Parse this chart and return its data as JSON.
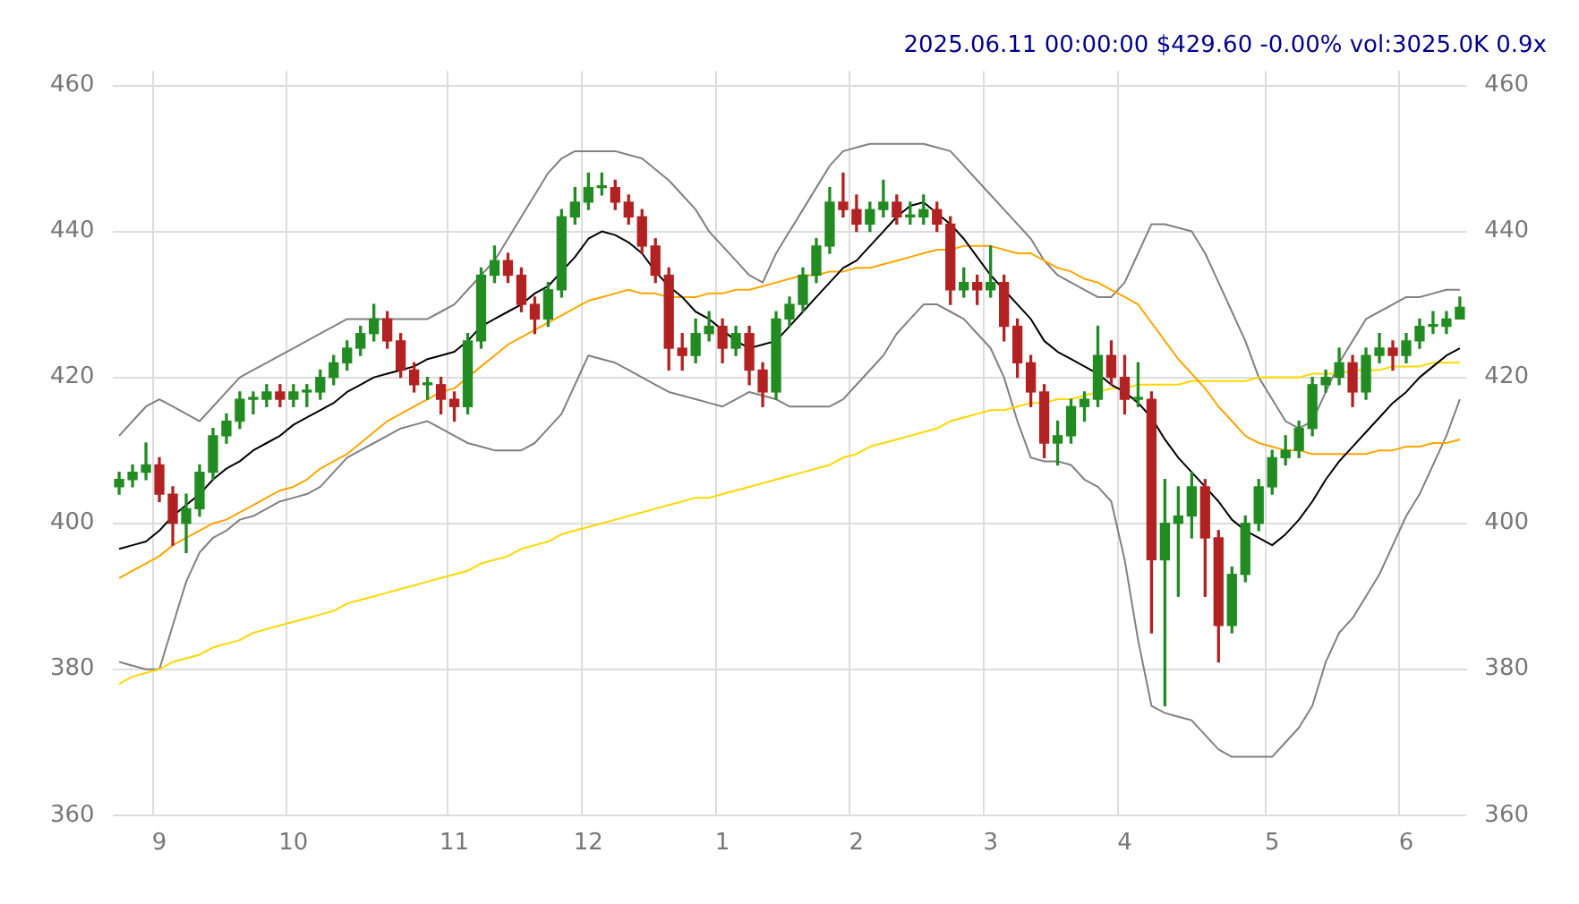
{
  "chart_data": {
    "type": "candlestick",
    "title": "2025.06.11 00:00:00 $429.60 -0.00% vol:3025.0K 0.9x",
    "categories": [
      null,
      null,
      null,
      "9",
      null,
      null,
      null,
      null,
      null,
      null,
      null,
      null,
      null,
      "10",
      null,
      null,
      null,
      null,
      null,
      null,
      null,
      null,
      null,
      null,
      null,
      "11",
      null,
      null,
      null,
      null,
      null,
      null,
      null,
      null,
      null,
      "12",
      null,
      null,
      null,
      null,
      null,
      null,
      null,
      null,
      null,
      "1",
      null,
      null,
      null,
      null,
      null,
      null,
      null,
      null,
      null,
      "2",
      null,
      null,
      null,
      null,
      null,
      null,
      null,
      null,
      null,
      "3",
      null,
      null,
      null,
      null,
      null,
      null,
      null,
      null,
      null,
      "4",
      null,
      null,
      null,
      null,
      null,
      null,
      null,
      null,
      null,
      null,
      "5",
      null,
      null,
      null,
      null,
      null,
      null,
      null,
      null,
      null,
      "6",
      null,
      null,
      null,
      null
    ],
    "ohlc": [
      [
        405,
        407,
        404,
        406
      ],
      [
        406,
        408,
        405,
        407
      ],
      [
        407,
        411,
        406,
        408
      ],
      [
        408,
        409,
        403,
        404
      ],
      [
        404,
        405,
        397,
        400
      ],
      [
        400,
        404,
        396,
        402
      ],
      [
        402,
        408,
        401,
        407
      ],
      [
        407,
        413,
        406,
        412
      ],
      [
        412,
        415,
        411,
        414
      ],
      [
        414,
        418,
        413,
        417
      ],
      [
        417,
        418,
        415,
        417
      ],
      [
        417,
        419,
        416,
        418
      ],
      [
        418,
        419,
        416,
        417
      ],
      [
        417,
        419,
        416,
        418
      ],
      [
        418,
        419,
        416,
        418
      ],
      [
        418,
        421,
        417,
        420
      ],
      [
        420,
        423,
        419,
        422
      ],
      [
        422,
        425,
        421,
        424
      ],
      [
        424,
        427,
        423,
        426
      ],
      [
        426,
        430,
        425,
        428
      ],
      [
        428,
        429,
        424,
        425
      ],
      [
        425,
        426,
        420,
        421
      ],
      [
        421,
        422,
        418,
        419
      ],
      [
        419,
        420,
        417,
        419
      ],
      [
        419,
        420,
        415,
        417
      ],
      [
        417,
        418,
        414,
        416
      ],
      [
        416,
        426,
        415,
        425
      ],
      [
        425,
        435,
        424,
        434
      ],
      [
        434,
        438,
        433,
        436
      ],
      [
        436,
        437,
        433,
        434
      ],
      [
        434,
        435,
        429,
        430
      ],
      [
        430,
        431,
        426,
        428
      ],
      [
        428,
        433,
        427,
        432
      ],
      [
        432,
        443,
        431,
        442
      ],
      [
        442,
        446,
        441,
        444
      ],
      [
        444,
        448,
        443,
        446
      ],
      [
        446,
        448,
        445,
        446
      ],
      [
        446,
        447,
        443,
        444
      ],
      [
        444,
        445,
        441,
        442
      ],
      [
        442,
        443,
        437,
        438
      ],
      [
        438,
        439,
        433,
        434
      ],
      [
        434,
        435,
        421,
        424
      ],
      [
        424,
        426,
        421,
        423
      ],
      [
        423,
        428,
        422,
        426
      ],
      [
        426,
        429,
        425,
        427
      ],
      [
        427,
        428,
        422,
        424
      ],
      [
        424,
        427,
        423,
        426
      ],
      [
        426,
        427,
        419,
        421
      ],
      [
        421,
        422,
        416,
        418
      ],
      [
        418,
        429,
        417,
        428
      ],
      [
        428,
        431,
        427,
        430
      ],
      [
        430,
        435,
        429,
        434
      ],
      [
        434,
        439,
        433,
        438
      ],
      [
        438,
        446,
        437,
        444
      ],
      [
        444,
        448,
        442,
        443
      ],
      [
        443,
        445,
        440,
        441
      ],
      [
        441,
        444,
        440,
        443
      ],
      [
        443,
        447,
        442,
        444
      ],
      [
        444,
        445,
        441,
        442
      ],
      [
        442,
        444,
        441,
        442
      ],
      [
        442,
        445,
        441,
        443
      ],
      [
        443,
        444,
        440,
        441
      ],
      [
        441,
        442,
        430,
        432
      ],
      [
        432,
        435,
        431,
        433
      ],
      [
        433,
        434,
        430,
        432
      ],
      [
        432,
        438,
        431,
        433
      ],
      [
        433,
        434,
        425,
        427
      ],
      [
        427,
        428,
        420,
        422
      ],
      [
        422,
        423,
        416,
        418
      ],
      [
        418,
        419,
        409,
        411
      ],
      [
        411,
        414,
        408,
        412
      ],
      [
        412,
        417,
        411,
        416
      ],
      [
        416,
        418,
        414,
        417
      ],
      [
        417,
        427,
        416,
        423
      ],
      [
        423,
        425,
        419,
        420
      ],
      [
        420,
        423,
        415,
        417
      ],
      [
        417,
        422,
        416,
        417
      ],
      [
        417,
        418,
        385,
        395
      ],
      [
        395,
        406,
        375,
        400
      ],
      [
        400,
        405,
        390,
        401
      ],
      [
        401,
        407,
        398,
        405
      ],
      [
        405,
        406,
        390,
        398
      ],
      [
        398,
        399,
        381,
        386
      ],
      [
        386,
        394,
        385,
        393
      ],
      [
        393,
        401,
        392,
        400
      ],
      [
        400,
        406,
        399,
        405
      ],
      [
        405,
        410,
        404,
        409
      ],
      [
        409,
        412,
        408,
        410
      ],
      [
        410,
        414,
        409,
        413
      ],
      [
        413,
        420,
        412,
        419
      ],
      [
        419,
        421,
        418,
        420
      ],
      [
        420,
        424,
        419,
        422
      ],
      [
        422,
        423,
        416,
        418
      ],
      [
        418,
        424,
        417,
        423
      ],
      [
        423,
        426,
        422,
        424
      ],
      [
        424,
        425,
        421,
        423
      ],
      [
        423,
        426,
        422,
        425
      ],
      [
        425,
        428,
        424,
        427
      ],
      [
        427,
        429,
        426,
        427
      ],
      [
        427,
        429,
        426,
        428
      ],
      [
        428,
        431,
        428,
        429.6
      ]
    ],
    "series": [
      {
        "type": "line",
        "color": "#000000",
        "values": [
          396.5,
          397,
          397.5,
          399,
          401,
          402.5,
          404,
          406,
          407.5,
          408.5,
          410,
          411,
          412,
          413.5,
          414.5,
          415.5,
          416.5,
          418,
          419,
          420,
          420.5,
          421,
          421.5,
          422.5,
          423,
          423.5,
          425,
          427,
          428,
          429,
          430,
          431.5,
          432.5,
          434.5,
          436.5,
          439,
          440,
          439.5,
          438.5,
          437,
          434.5,
          432.5,
          431,
          429,
          428,
          426.5,
          425,
          424,
          424.5,
          425,
          427,
          429,
          431,
          433,
          435,
          436,
          438,
          440,
          442,
          443.5,
          444,
          442.5,
          441,
          439,
          436.5,
          434,
          432,
          430,
          428,
          425,
          423.5,
          422.5,
          421.5,
          420.5,
          419,
          418,
          416.5,
          414.5,
          411.5,
          409,
          407,
          405,
          403,
          400.5,
          399,
          398,
          397,
          398.5,
          400.5,
          403,
          406,
          408.5,
          410.5,
          412.5,
          414.5,
          416.5,
          418,
          420,
          421.5,
          423,
          424
        ]
      },
      {
        "type": "line",
        "color": "#ffa500",
        "values": [
          392.5,
          393.5,
          394.5,
          395.5,
          397,
          398,
          399,
          400,
          400.5,
          401.5,
          402.5,
          403.5,
          404.5,
          405,
          406,
          407.5,
          408.5,
          409.5,
          411,
          412.5,
          414,
          415,
          416,
          417,
          418,
          418.5,
          420,
          421.5,
          423,
          424.5,
          425.5,
          426.5,
          427.5,
          428.5,
          429.5,
          430.5,
          431,
          431.5,
          432,
          431.5,
          431.5,
          431,
          431,
          431,
          431.5,
          431.5,
          432,
          432,
          432.5,
          433,
          433.5,
          434,
          434,
          434.5,
          434.5,
          435,
          435,
          435.5,
          436,
          436.5,
          437,
          437.5,
          437.5,
          438,
          438,
          438,
          437.5,
          437,
          437,
          436,
          435,
          434.5,
          433.5,
          433,
          432,
          431,
          430,
          427.5,
          425,
          422.5,
          420.5,
          418.5,
          416,
          414,
          412,
          411,
          410.5,
          410,
          410,
          409.5,
          409.5,
          409.5,
          409.5,
          409.5,
          410,
          410,
          410.5,
          410.5,
          411,
          411,
          411.5
        ]
      },
      {
        "type": "line",
        "color": "#ffd700",
        "values": [
          378,
          379,
          379.5,
          380,
          381,
          381.5,
          382,
          383,
          383.5,
          384,
          385,
          385.5,
          386,
          386.5,
          387,
          387.5,
          388,
          389,
          389.5,
          390,
          390.5,
          391,
          391.5,
          392,
          392.5,
          393,
          393.5,
          394.5,
          395,
          395.5,
          396.5,
          397,
          397.5,
          398.5,
          399,
          399.5,
          400,
          400.5,
          401,
          401.5,
          402,
          402.5,
          403,
          403.5,
          403.5,
          404,
          404.5,
          405,
          405.5,
          406,
          406.5,
          407,
          407.5,
          408,
          409,
          409.5,
          410.5,
          411,
          411.5,
          412,
          412.5,
          413,
          414,
          414.5,
          415,
          415.5,
          415.5,
          416,
          416.5,
          416.5,
          417,
          417,
          417.5,
          418,
          418.5,
          418.5,
          419,
          419,
          419,
          419,
          419.5,
          419.5,
          419.5,
          419.5,
          419.5,
          420,
          420,
          420,
          420,
          420.5,
          420.5,
          420.5,
          421,
          421,
          421,
          421.5,
          421.5,
          421.5,
          422,
          422,
          422
        ]
      },
      {
        "type": "line",
        "color": "#808080",
        "values": [
          412,
          414,
          416,
          417,
          416,
          415,
          414,
          416,
          418,
          420,
          421,
          422,
          423,
          424,
          425,
          426,
          427,
          428,
          428,
          428,
          428,
          428,
          428,
          428,
          429,
          430,
          432,
          434,
          436,
          439,
          442,
          445,
          448,
          450,
          451,
          451,
          451,
          451,
          450.5,
          450,
          448.5,
          447,
          445,
          443,
          440,
          438,
          436,
          434,
          433,
          437,
          440,
          443,
          446,
          449,
          451,
          451.5,
          452,
          452,
          452,
          452,
          452,
          451.5,
          451,
          449,
          447,
          445,
          443,
          441,
          439,
          436,
          434,
          433,
          432,
          431,
          431,
          433,
          437,
          441,
          441,
          440.5,
          440,
          437,
          433,
          429,
          425,
          420,
          417,
          414,
          413,
          414,
          418,
          422,
          425,
          428,
          429,
          430,
          431,
          431,
          431.5,
          432,
          432
        ]
      },
      {
        "type": "line",
        "color": "#808080",
        "values": [
          381,
          380.5,
          380,
          380,
          386,
          392,
          396,
          398,
          399,
          400.5,
          401,
          402,
          403,
          403.5,
          404,
          405,
          407,
          409,
          410,
          411,
          412,
          413,
          413.5,
          414,
          413,
          412,
          411,
          410.5,
          410,
          410,
          410,
          411,
          413,
          415,
          419,
          423,
          422.5,
          422,
          421,
          420,
          419,
          418,
          417.5,
          417,
          416.5,
          416,
          417,
          418,
          417.5,
          417,
          416,
          416,
          416,
          416,
          417,
          419,
          421,
          423,
          426,
          428,
          430,
          430,
          429,
          428,
          426,
          424,
          420,
          414,
          409,
          408.5,
          408.5,
          408,
          406,
          405,
          403,
          395,
          384,
          375,
          374,
          373.5,
          373,
          371,
          369,
          368,
          368,
          368,
          368,
          370,
          372,
          375,
          381,
          385,
          387,
          390,
          393,
          397,
          401,
          404,
          408,
          412,
          417
        ]
      }
    ],
    "ylim": [
      360,
      462
    ],
    "yticks": [
      360,
      380,
      400,
      420,
      440,
      460
    ],
    "y2lim": [
      360,
      462
    ],
    "y2ticks": [
      360,
      380,
      400,
      420,
      440,
      460
    ],
    "grid": true
  }
}
